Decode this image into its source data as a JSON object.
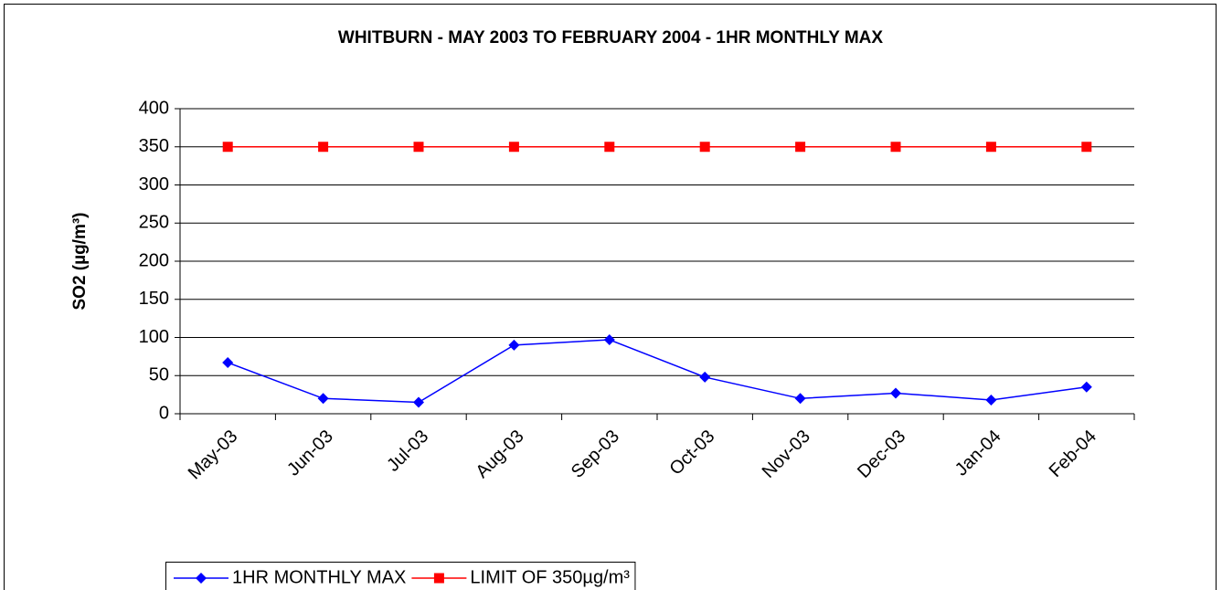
{
  "chart_data": {
    "type": "line",
    "title": "WHITBURN - MAY 2003 TO FEBRUARY 2004 - 1HR MONTHLY MAX",
    "y_label": "SO2 (µg/m³)",
    "categories": [
      "May-03",
      "Jun-03",
      "Jul-03",
      "Aug-03",
      "Sep-03",
      "Oct-03",
      "Nov-03",
      "Dec-03",
      "Jan-04",
      "Feb-04"
    ],
    "series": [
      {
        "name": "1HR MONTHLY MAX",
        "color": "#0000ff",
        "marker": "diamond",
        "values": [
          67,
          20,
          15,
          90,
          97,
          48,
          20,
          27,
          18,
          35
        ]
      },
      {
        "name": "LIMIT OF 350µg/m³",
        "color": "#ff0000",
        "marker": "square",
        "values": [
          350,
          350,
          350,
          350,
          350,
          350,
          350,
          350,
          350,
          350
        ]
      }
    ],
    "ylim": [
      0,
      400
    ],
    "yticks": [
      0,
      50,
      100,
      150,
      200,
      250,
      300,
      350,
      400
    ],
    "grid": true,
    "legend": "bottom"
  }
}
